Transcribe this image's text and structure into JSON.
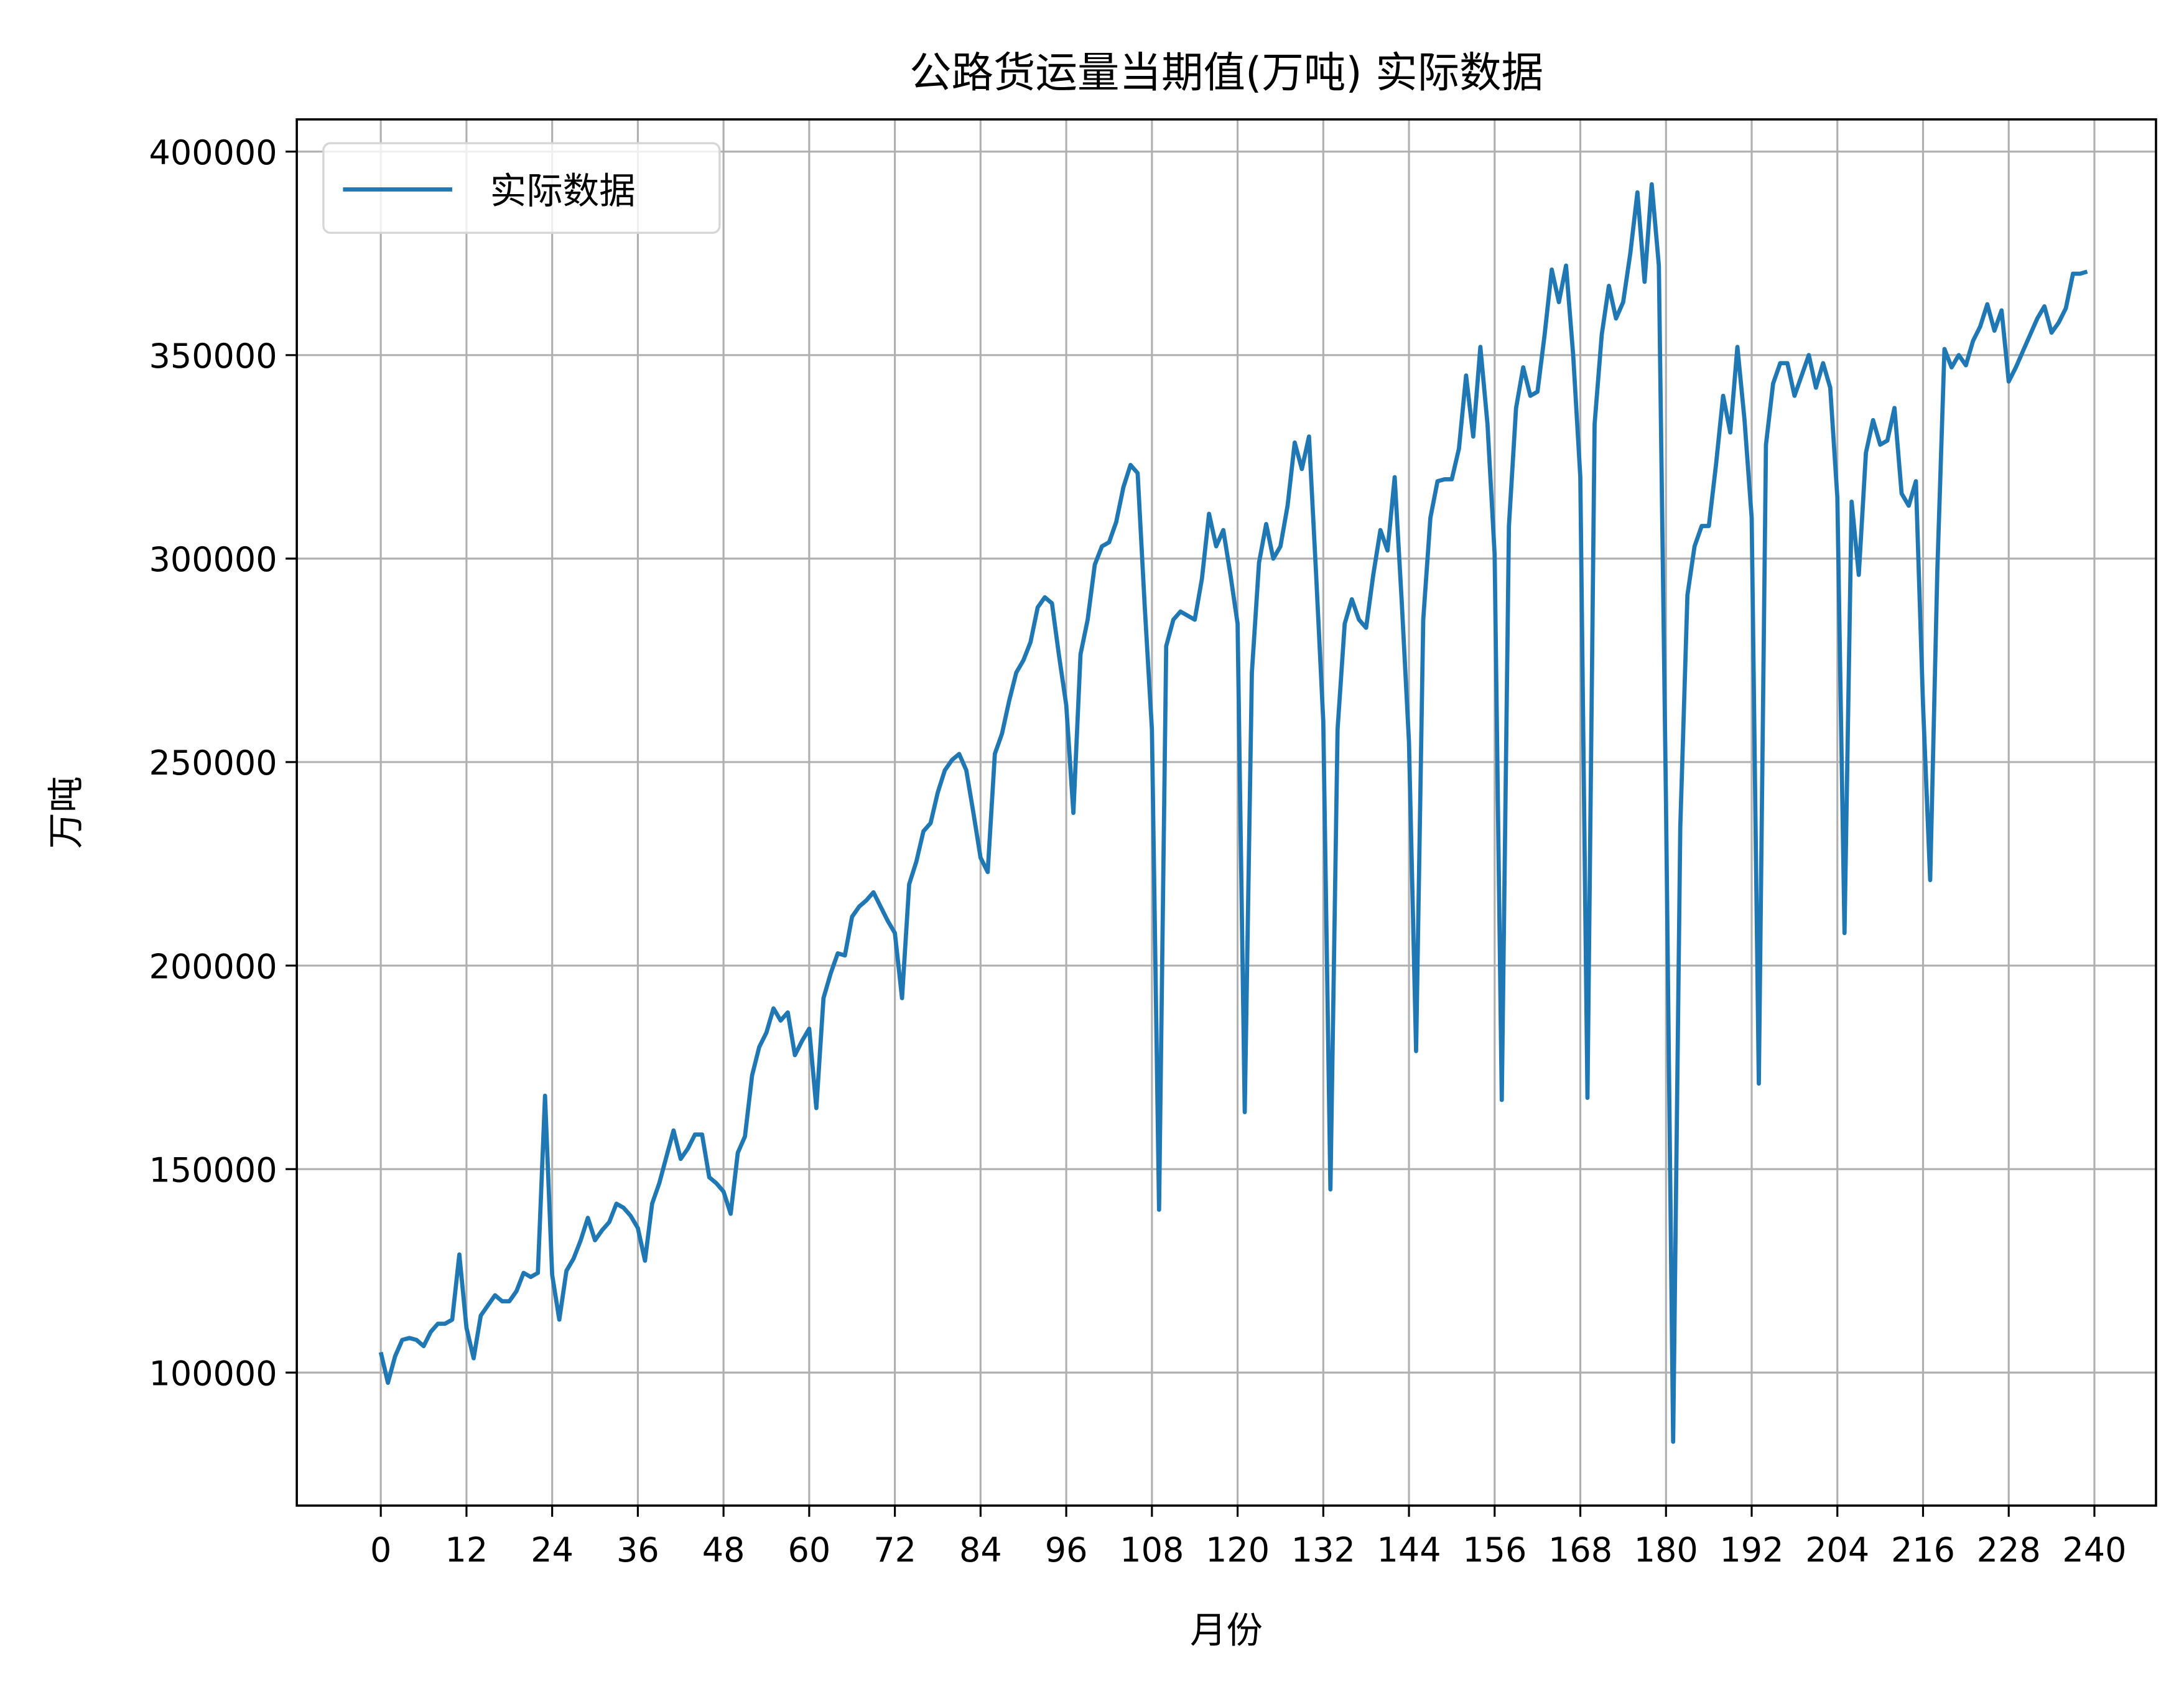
{
  "chart_data": {
    "type": "line",
    "title": "公路货运量当期值(万吨) 实际数据",
    "xlabel": "月份",
    "ylabel": "万吨",
    "xlim": [
      -14,
      250
    ],
    "ylim": [
      67000,
      409000
    ],
    "grid": true,
    "legend_position": "upper left",
    "x_ticks": [
      0,
      12,
      24,
      36,
      48,
      60,
      72,
      84,
      96,
      108,
      120,
      132,
      144,
      156,
      168,
      180,
      192,
      204,
      216,
      228,
      240
    ],
    "y_ticks": [
      100000,
      150000,
      200000,
      250000,
      300000,
      350000,
      400000
    ],
    "y_tick_labels": [
      "100000",
      "150000",
      "200000",
      "250000",
      "300000",
      "350000",
      "400000"
    ],
    "series": [
      {
        "name": "实际数据",
        "color": "#1f77b4",
        "values": [
          105000,
          97500,
          104000,
          108000,
          108500,
          108000,
          106500,
          110000,
          112000,
          112000,
          113000,
          129000,
          111000,
          103500,
          114000,
          116500,
          119000,
          117500,
          117500,
          120000,
          124500,
          123500,
          124500,
          168000,
          124000,
          113000,
          125000,
          128000,
          132500,
          138000,
          132500,
          135000,
          137000,
          141500,
          140500,
          138500,
          135500,
          127500,
          141500,
          146500,
          153000,
          159500,
          152500,
          155000,
          158500,
          158500,
          148000,
          146500,
          144500,
          139000,
          154000,
          158000,
          173000,
          180000,
          183500,
          189500,
          186500,
          188500,
          178000,
          181500,
          184500,
          165000,
          192000,
          198000,
          203000,
          202500,
          212000,
          214500,
          216000,
          218000,
          214500,
          211000,
          208000,
          192000,
          220000,
          225500,
          233000,
          235000,
          242500,
          248000,
          250500,
          252000,
          248000,
          237500,
          226500,
          223000,
          252000,
          257000,
          265000,
          272000,
          275000,
          279500,
          288000,
          290500,
          289000,
          276000,
          264000,
          237500,
          276500,
          285000,
          298500,
          303000,
          304000,
          309000,
          317500,
          323000,
          321000,
          288000,
          258000,
          140000,
          278500,
          285000,
          287000,
          286000,
          285000,
          295000,
          311000,
          303000,
          307000,
          296000,
          284000,
          164000,
          272000,
          299000,
          308500,
          300000,
          303000,
          313000,
          328500,
          322000,
          330000,
          296000,
          260000,
          145000,
          258000,
          284000,
          290000,
          285000,
          283000,
          296000,
          307000,
          302000,
          320000,
          289000,
          255000,
          179000,
          285000,
          310000,
          319000,
          319500,
          319500,
          327000,
          345000,
          330000,
          352000,
          333000,
          301000,
          167000,
          308000,
          337000,
          347000,
          340000,
          341000,
          355000,
          371000,
          363000,
          372000,
          350000,
          320000,
          167500,
          333000,
          355000,
          367000,
          359000,
          363000,
          375000,
          390000,
          368000,
          392000,
          372000,
          240000,
          83000,
          234000,
          291000,
          303000,
          308000,
          308000,
          323000,
          340000,
          331000,
          352000,
          334000,
          310000,
          171000,
          328000,
          343000,
          348000,
          348000,
          340000,
          345000,
          350000,
          342000,
          348000,
          342000,
          315000,
          208000,
          314000,
          296000,
          326000,
          334000,
          328000,
          329000,
          337000,
          316000,
          313000,
          319000,
          264000,
          221000,
          297000,
          351500,
          347000,
          350000,
          347500,
          353500,
          357000,
          362500,
          356000,
          361000,
          343500,
          347000,
          351000,
          355000,
          359000,
          362000,
          355500,
          358000,
          361500,
          370000,
          370000,
          370500
        ]
      }
    ]
  },
  "legend": {
    "label": "实际数据"
  }
}
